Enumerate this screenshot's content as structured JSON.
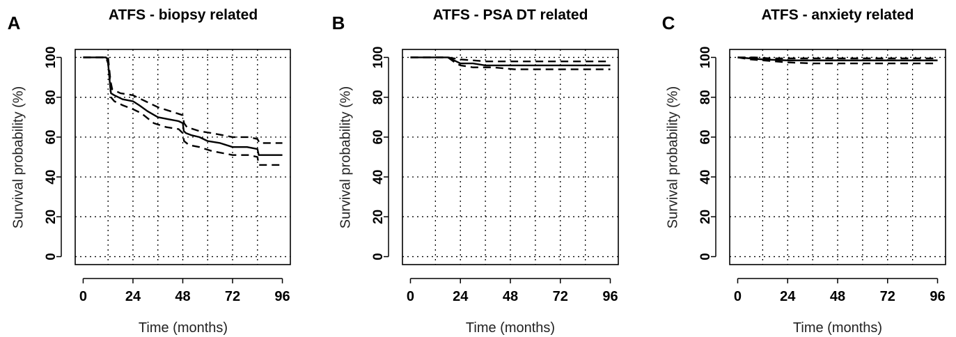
{
  "chart_data": [
    {
      "type": "line",
      "panel_label": "A",
      "title": "ATFS - biopsy related",
      "xlabel": "Time (months)",
      "ylabel": "Survival probability (%)",
      "xlim": [
        0,
        96
      ],
      "ylim": [
        0,
        100
      ],
      "x_ticks": [
        0,
        24,
        48,
        72,
        96
      ],
      "y_ticks": [
        0,
        20,
        40,
        60,
        80,
        100
      ],
      "grid": true,
      "series": [
        {
          "style": "solid",
          "points": [
            [
              0,
              100
            ],
            [
              11,
              100
            ],
            [
              11.8,
              99
            ],
            [
              12.3,
              94
            ],
            [
              12.8,
              88
            ],
            [
              13.4,
              82
            ],
            [
              15,
              81
            ],
            [
              19,
              79
            ],
            [
              24,
              78
            ],
            [
              27,
              76
            ],
            [
              31,
              73
            ],
            [
              36,
              70
            ],
            [
              41,
              69
            ],
            [
              46,
              68
            ],
            [
              48,
              67
            ],
            [
              48.5,
              63
            ],
            [
              49.5,
              62
            ],
            [
              52,
              61
            ],
            [
              56,
              60
            ],
            [
              60,
              58
            ],
            [
              66,
              57
            ],
            [
              72,
              55
            ],
            [
              79,
              55
            ],
            [
              84,
              54
            ],
            [
              84.6,
              51
            ],
            [
              96,
              51
            ]
          ]
        },
        {
          "style": "dashed",
          "points": [
            [
              0,
              100
            ],
            [
              11,
              100
            ],
            [
              12,
              100
            ],
            [
              12.5,
              95
            ],
            [
              13.2,
              88
            ],
            [
              14,
              84
            ],
            [
              18,
              82
            ],
            [
              24,
              81
            ],
            [
              30,
              78
            ],
            [
              36,
              75
            ],
            [
              42,
              73
            ],
            [
              48,
              71
            ],
            [
              48.6,
              67
            ],
            [
              50,
              65
            ],
            [
              56,
              63
            ],
            [
              62,
              62
            ],
            [
              72,
              60
            ],
            [
              80,
              60
            ],
            [
              84,
              59
            ],
            [
              85,
              57
            ],
            [
              96,
              57
            ]
          ]
        },
        {
          "style": "dashed",
          "points": [
            [
              0,
              100
            ],
            [
              11,
              100
            ],
            [
              12,
              97
            ],
            [
              12.8,
              90
            ],
            [
              13.4,
              80
            ],
            [
              15,
              78
            ],
            [
              19,
              76
            ],
            [
              24,
              74
            ],
            [
              28,
              72
            ],
            [
              34,
              67
            ],
            [
              40,
              65
            ],
            [
              46,
              64
            ],
            [
              48,
              62
            ],
            [
              48.6,
              58
            ],
            [
              51,
              56
            ],
            [
              56,
              55
            ],
            [
              62,
              53
            ],
            [
              72,
              51
            ],
            [
              80,
              51
            ],
            [
              84,
              50
            ],
            [
              84.6,
              46
            ],
            [
              96,
              46
            ]
          ]
        }
      ]
    },
    {
      "type": "line",
      "panel_label": "B",
      "title": "ATFS - PSA DT related",
      "xlabel": "Time (months)",
      "ylabel": "Survival probability (%)",
      "xlim": [
        0,
        96
      ],
      "ylim": [
        0,
        100
      ],
      "x_ticks": [
        0,
        24,
        48,
        72,
        96
      ],
      "y_ticks": [
        0,
        20,
        40,
        60,
        80,
        100
      ],
      "grid": true,
      "series": [
        {
          "style": "solid",
          "points": [
            [
              0,
              100
            ],
            [
              18,
              100
            ],
            [
              20,
              99
            ],
            [
              22,
              98
            ],
            [
              24,
              97
            ],
            [
              30,
              97
            ],
            [
              36,
              96
            ],
            [
              48,
              96
            ],
            [
              60,
              96
            ],
            [
              72,
              96
            ],
            [
              96,
              96
            ]
          ]
        },
        {
          "style": "dashed",
          "points": [
            [
              0,
              100
            ],
            [
              18,
              100
            ],
            [
              21,
              99.5
            ],
            [
              24,
              99
            ],
            [
              36,
              98
            ],
            [
              48,
              98
            ],
            [
              60,
              98
            ],
            [
              72,
              98
            ],
            [
              96,
              98
            ]
          ]
        },
        {
          "style": "dashed",
          "points": [
            [
              0,
              100
            ],
            [
              18,
              100
            ],
            [
              20,
              98.5
            ],
            [
              22,
              97
            ],
            [
              24,
              96
            ],
            [
              30,
              95
            ],
            [
              40,
              95
            ],
            [
              50,
              94
            ],
            [
              60,
              94
            ],
            [
              72,
              94
            ],
            [
              96,
              94
            ]
          ]
        }
      ]
    },
    {
      "type": "line",
      "panel_label": "C",
      "title": "ATFS - anxiety related",
      "xlabel": "Time (months)",
      "ylabel": "Survival probability (%)",
      "xlim": [
        0,
        96
      ],
      "ylim": [
        0,
        100
      ],
      "x_ticks": [
        0,
        24,
        48,
        72,
        96
      ],
      "y_ticks": [
        0,
        20,
        40,
        60,
        80,
        100
      ],
      "grid": true,
      "series": [
        {
          "style": "solid",
          "points": [
            [
              0,
              100
            ],
            [
              6,
              99.5
            ],
            [
              12,
              99
            ],
            [
              24,
              98.5
            ],
            [
              36,
              98.5
            ],
            [
              48,
              98.5
            ],
            [
              60,
              98.5
            ],
            [
              72,
              98.5
            ],
            [
              96,
              98.5
            ]
          ]
        },
        {
          "style": "dashed",
          "points": [
            [
              0,
              100
            ],
            [
              8,
              100
            ],
            [
              16,
              99.5
            ],
            [
              24,
              99.5
            ],
            [
              48,
              99.5
            ],
            [
              72,
              99.5
            ],
            [
              96,
              99.5
            ]
          ]
        },
        {
          "style": "dashed",
          "points": [
            [
              0,
              100
            ],
            [
              6,
              99
            ],
            [
              12,
              98.5
            ],
            [
              18,
              98
            ],
            [
              24,
              97.5
            ],
            [
              36,
              97
            ],
            [
              48,
              97
            ],
            [
              60,
              97
            ],
            [
              72,
              97
            ],
            [
              96,
              97
            ]
          ]
        }
      ]
    }
  ]
}
